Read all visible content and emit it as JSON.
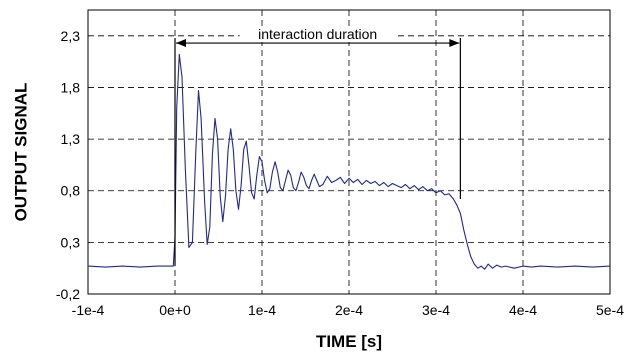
{
  "chart_data": {
    "type": "line",
    "title": "",
    "xlabel": "TIME [s]",
    "ylabel": "OUTPUT SIGNAL",
    "xlim": [
      -0.0001,
      0.0005
    ],
    "ylim": [
      -0.2,
      2.55
    ],
    "x_ticks": [
      {
        "value": -0.0001,
        "label": "-1e-4"
      },
      {
        "value": 0.0,
        "label": "0e+0"
      },
      {
        "value": 0.0001,
        "label": "1e-4"
      },
      {
        "value": 0.0002,
        "label": "2e-4"
      },
      {
        "value": 0.0003,
        "label": "3e-4"
      },
      {
        "value": 0.0004,
        "label": "4e-4"
      },
      {
        "value": 0.0005,
        "label": "5e-4"
      }
    ],
    "y_ticks": [
      {
        "value": -0.2,
        "label": "-0,2"
      },
      {
        "value": 0.3,
        "label": "0,3"
      },
      {
        "value": 0.8,
        "label": "0,8"
      },
      {
        "value": 1.3,
        "label": "1,3"
      },
      {
        "value": 1.8,
        "label": "1,8"
      },
      {
        "value": 2.3,
        "label": "2,3"
      }
    ],
    "grid": true,
    "grid_style": "dashed",
    "series_color": "#1f2a8c",
    "annotation": {
      "text": "interaction duration",
      "x_start": 0.0,
      "x_end": 0.000328,
      "y": 2.23
    },
    "series": [
      {
        "color": "#1f2a8c",
        "points": [
          [
            -0.0001,
            0.07
          ],
          [
            -8e-05,
            0.06
          ],
          [
            -6e-05,
            0.07
          ],
          [
            -4e-05,
            0.06
          ],
          [
            -2e-05,
            0.07
          ],
          [
            -2e-06,
            0.07
          ],
          [
            0.0,
            0.35
          ],
          [
            2e-06,
            1.6
          ],
          [
            5e-06,
            2.12
          ],
          [
            8e-06,
            1.9
          ],
          [
            1.2e-05,
            1.0
          ],
          [
            1.6e-05,
            0.25
          ],
          [
            2e-05,
            0.3
          ],
          [
            2.4e-05,
            1.2
          ],
          [
            2.7e-05,
            1.77
          ],
          [
            3e-05,
            1.5
          ],
          [
            3.4e-05,
            0.7
          ],
          [
            3.7e-05,
            0.28
          ],
          [
            4e-05,
            0.45
          ],
          [
            4.3e-05,
            1.15
          ],
          [
            4.6e-05,
            1.5
          ],
          [
            4.9e-05,
            1.3
          ],
          [
            5.2e-05,
            0.75
          ],
          [
            5.5e-05,
            0.5
          ],
          [
            5.8e-05,
            0.75
          ],
          [
            6.1e-05,
            1.2
          ],
          [
            6.4e-05,
            1.4
          ],
          [
            6.7e-05,
            1.2
          ],
          [
            7e-05,
            0.8
          ],
          [
            7.3e-05,
            0.62
          ],
          [
            7.6e-05,
            0.85
          ],
          [
            7.9e-05,
            1.2
          ],
          [
            8.2e-05,
            1.28
          ],
          [
            8.5e-05,
            1.05
          ],
          [
            8.8e-05,
            0.78
          ],
          [
            9.1e-05,
            0.72
          ],
          [
            9.4e-05,
            0.95
          ],
          [
            9.7e-05,
            1.13
          ],
          [
            0.0001,
            1.08
          ],
          [
            0.000103,
            0.9
          ],
          [
            0.000106,
            0.78
          ],
          [
            0.000109,
            0.82
          ],
          [
            0.000112,
            0.98
          ],
          [
            0.000115,
            1.08
          ],
          [
            0.000118,
            0.98
          ],
          [
            0.000121,
            0.83
          ],
          [
            0.000124,
            0.8
          ],
          [
            0.000127,
            0.9
          ],
          [
            0.00013,
            1.0
          ],
          [
            0.000133,
            0.95
          ],
          [
            0.000136,
            0.83
          ],
          [
            0.000139,
            0.8
          ],
          [
            0.000142,
            0.88
          ],
          [
            0.000145,
            0.98
          ],
          [
            0.000148,
            0.93
          ],
          [
            0.000151,
            0.85
          ],
          [
            0.000154,
            0.82
          ],
          [
            0.000157,
            0.9
          ],
          [
            0.00016,
            0.96
          ],
          [
            0.000163,
            0.9
          ],
          [
            0.000166,
            0.84
          ],
          [
            0.00017,
            0.86
          ],
          [
            0.000175,
            0.94
          ],
          [
            0.00018,
            0.88
          ],
          [
            0.000185,
            0.9
          ],
          [
            0.00019,
            0.93
          ],
          [
            0.000195,
            0.87
          ],
          [
            0.0002,
            0.92
          ],
          [
            0.000205,
            0.88
          ],
          [
            0.00021,
            0.91
          ],
          [
            0.000215,
            0.86
          ],
          [
            0.00022,
            0.9
          ],
          [
            0.000225,
            0.87
          ],
          [
            0.00023,
            0.89
          ],
          [
            0.000235,
            0.85
          ],
          [
            0.00024,
            0.88
          ],
          [
            0.000245,
            0.84
          ],
          [
            0.00025,
            0.87
          ],
          [
            0.000255,
            0.85
          ],
          [
            0.00026,
            0.83
          ],
          [
            0.000265,
            0.86
          ],
          [
            0.00027,
            0.82
          ],
          [
            0.000275,
            0.85
          ],
          [
            0.00028,
            0.81
          ],
          [
            0.000285,
            0.84
          ],
          [
            0.00029,
            0.8
          ],
          [
            0.000295,
            0.82
          ],
          [
            0.0003,
            0.78
          ],
          [
            0.000305,
            0.8
          ],
          [
            0.00031,
            0.76
          ],
          [
            0.000315,
            0.77
          ],
          [
            0.00032,
            0.72
          ],
          [
            0.000324,
            0.66
          ],
          [
            0.000328,
            0.58
          ],
          [
            0.000332,
            0.42
          ],
          [
            0.000336,
            0.28
          ],
          [
            0.00034,
            0.16
          ],
          [
            0.000344,
            0.09
          ],
          [
            0.000348,
            0.05
          ],
          [
            0.000352,
            0.07
          ],
          [
            0.000356,
            0.04
          ],
          [
            0.00036,
            0.09
          ],
          [
            0.000365,
            0.05
          ],
          [
            0.00037,
            0.08
          ],
          [
            0.000375,
            0.06
          ],
          [
            0.00038,
            0.07
          ],
          [
            0.00039,
            0.05
          ],
          [
            0.0004,
            0.07
          ],
          [
            0.00041,
            0.06
          ],
          [
            0.00042,
            0.07
          ],
          [
            0.00044,
            0.06
          ],
          [
            0.00046,
            0.07
          ],
          [
            0.00048,
            0.06
          ],
          [
            0.0005,
            0.07
          ]
        ]
      }
    ]
  }
}
